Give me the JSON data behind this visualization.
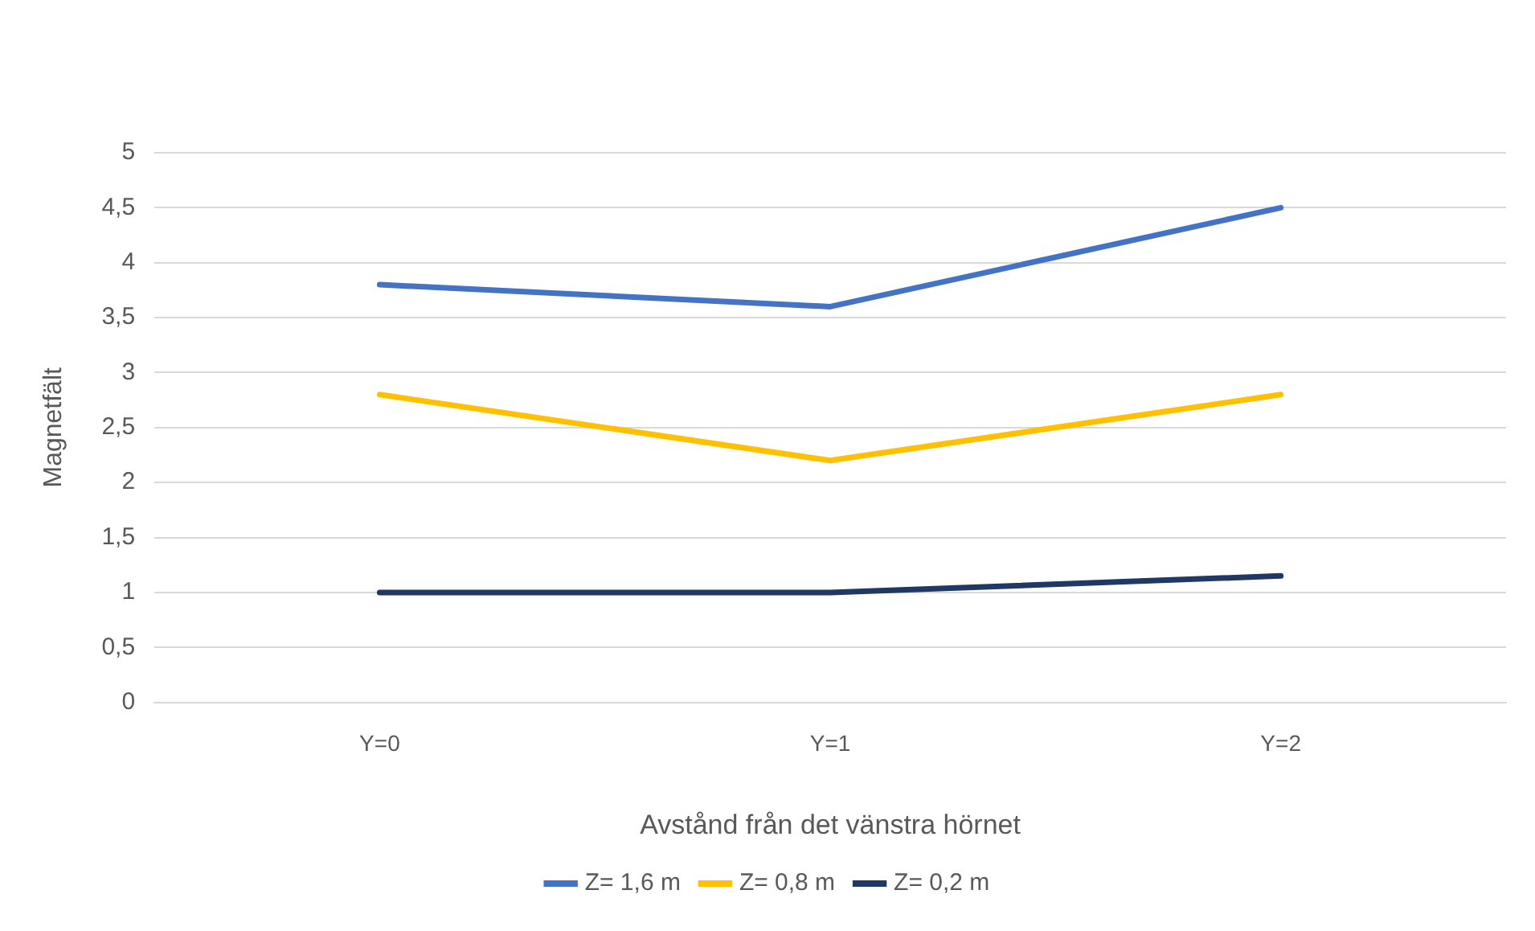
{
  "chart_data": {
    "type": "line",
    "xlabel": "Avstånd från det vänstra hörnet",
    "ylabel": "Magnetfält",
    "categories": [
      "Y=0",
      "Y=1",
      "Y=2"
    ],
    "series": [
      {
        "name": "Z= 1,6 m",
        "color": "#4472c4",
        "values": [
          3.8,
          3.6,
          4.5
        ]
      },
      {
        "name": "Z= 0,8 m",
        "color": "#ffc000",
        "values": [
          2.8,
          2.2,
          2.8
        ]
      },
      {
        "name": "Z= 0,2 m",
        "color": "#203864",
        "values": [
          1.0,
          1.0,
          1.15
        ]
      }
    ],
    "ylim": [
      0,
      5
    ],
    "yticks": [
      0,
      {
        "value": 0.5,
        "label": "0,5"
      },
      1,
      {
        "value": 1.5,
        "label": "1,5"
      },
      2,
      {
        "value": 2.5,
        "label": "2,5"
      },
      3,
      {
        "value": 3.5,
        "label": "3,5"
      },
      4,
      {
        "value": 4.5,
        "label": "4,5"
      },
      5
    ],
    "grid": "y",
    "legend": "bottom",
    "marker": "none",
    "line_style": "solid"
  }
}
